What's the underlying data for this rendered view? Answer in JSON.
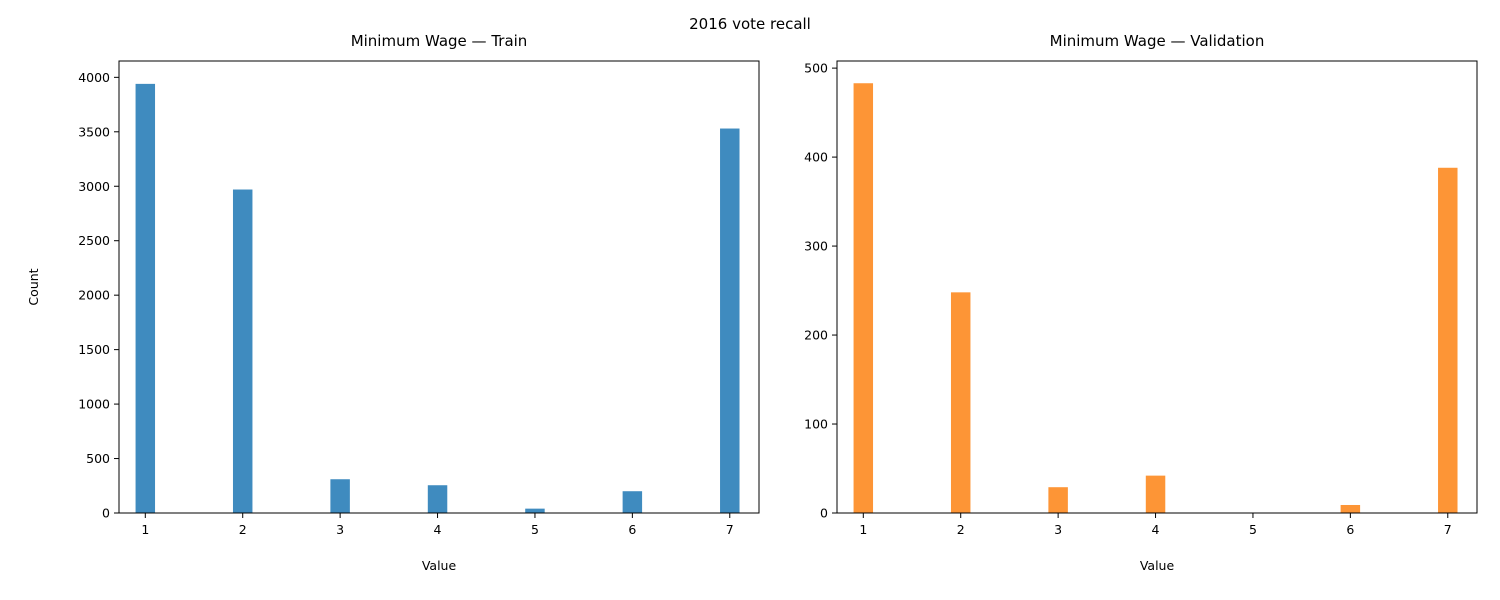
{
  "figure": {
    "suptitle": "2016 vote recall"
  },
  "chart_data": [
    {
      "type": "bar",
      "title": "Minimum Wage — Train",
      "xlabel": "Value",
      "ylabel": "Count",
      "categories": [
        1,
        2,
        3,
        4,
        5,
        6,
        7
      ],
      "values": [
        3940,
        2970,
        310,
        255,
        40,
        200,
        3530
      ],
      "xlim": [
        0.73,
        7.3
      ],
      "ylim": [
        0,
        4150
      ],
      "xticks": [
        "1",
        "2",
        "3",
        "4",
        "5",
        "6",
        "7"
      ],
      "yticks": [
        "0",
        "500",
        "1000",
        "1500",
        "2000",
        "2500",
        "3000",
        "3500",
        "4000"
      ],
      "color": "#3f8bbf"
    },
    {
      "type": "bar",
      "title": "Minimum Wage — Validation",
      "xlabel": "Value",
      "ylabel": "",
      "categories": [
        1,
        2,
        3,
        4,
        5,
        6,
        7
      ],
      "values": [
        483,
        248,
        29,
        42,
        0,
        9,
        388
      ],
      "xlim": [
        0.73,
        7.3
      ],
      "ylim": [
        0,
        508
      ],
      "xticks": [
        "1",
        "2",
        "3",
        "4",
        "5",
        "6",
        "7"
      ],
      "yticks": [
        "0",
        "100",
        "200",
        "300",
        "400",
        "500"
      ],
      "color": "#fd9536"
    }
  ]
}
